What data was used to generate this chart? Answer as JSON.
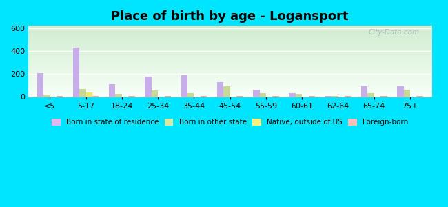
{
  "title": "Place of birth by age - Logansport",
  "categories": [
    "<5",
    "5-17",
    "18-24",
    "25-34",
    "35-44",
    "45-54",
    "55-59",
    "60-61",
    "62-64",
    "65-74",
    "75+"
  ],
  "series": {
    "Born in state of residence": [
      205,
      430,
      110,
      175,
      190,
      130,
      65,
      35,
      10,
      95,
      95
    ],
    "Born in other state": [
      20,
      70,
      25,
      55,
      30,
      95,
      30,
      25,
      10,
      30,
      65
    ],
    "Native, outside of US": [
      0,
      40,
      0,
      0,
      0,
      0,
      0,
      0,
      0,
      0,
      0
    ],
    "Foreign-born": [
      5,
      10,
      5,
      5,
      5,
      5,
      5,
      5,
      5,
      5,
      5
    ]
  },
  "colors": {
    "Born in state of residence": "#c8aee8",
    "Born in other state": "#c8d898",
    "Native, outside of US": "#ece870",
    "Foreign-born": "#f0a898"
  },
  "legend_colors": {
    "Born in state of residence": "#e0b8f0",
    "Born in other state": "#d8e8a8",
    "Native, outside of US": "#f8f080",
    "Foreign-born": "#f8c0b8"
  },
  "ylim": [
    0,
    620
  ],
  "yticks": [
    0,
    200,
    400,
    600
  ],
  "plot_bg_top": "#d0ecd0",
  "plot_bg_bottom": "#f8fff8",
  "outer_bg": "#00e5ff",
  "bar_width": 0.18,
  "watermark": "City-Data.com"
}
